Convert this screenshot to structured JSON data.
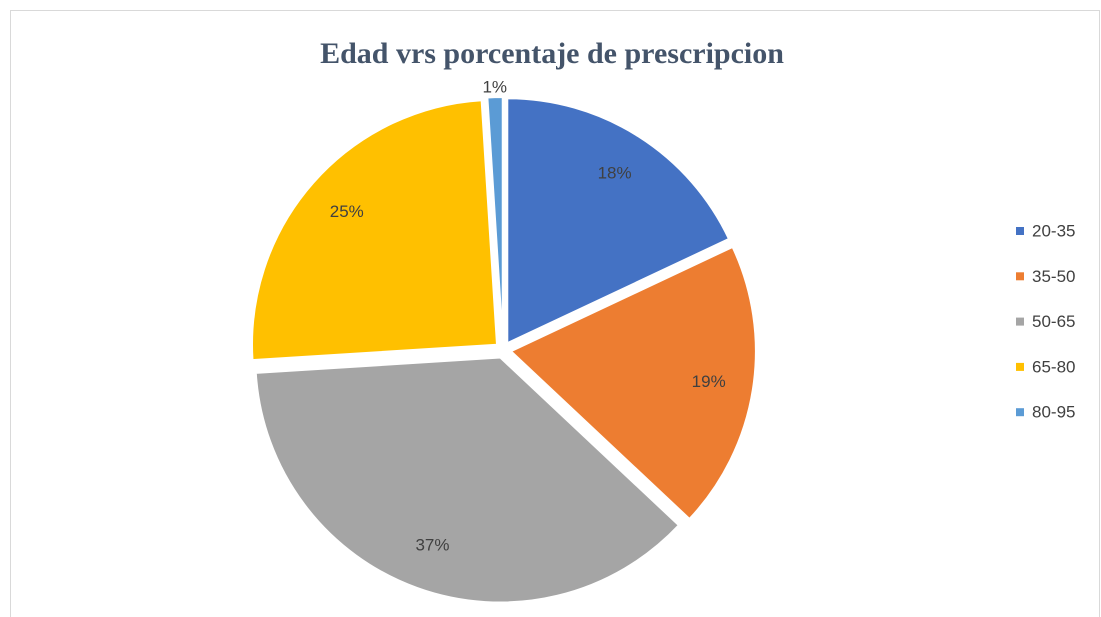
{
  "chart_data": {
    "type": "pie",
    "title": "Edad vrs porcentaje de prescripcion",
    "categories": [
      "20-35",
      "35-50",
      "50-65",
      "65-80",
      "80-95"
    ],
    "values": [
      18,
      19,
      37,
      25,
      1
    ],
    "value_labels": [
      "18%",
      "19%",
      "37%",
      "25%",
      "1%"
    ],
    "colors": [
      "#4472c4",
      "#ed7d31",
      "#a5a5a5",
      "#ffc000",
      "#5b9bd5"
    ],
    "legend": "right"
  }
}
